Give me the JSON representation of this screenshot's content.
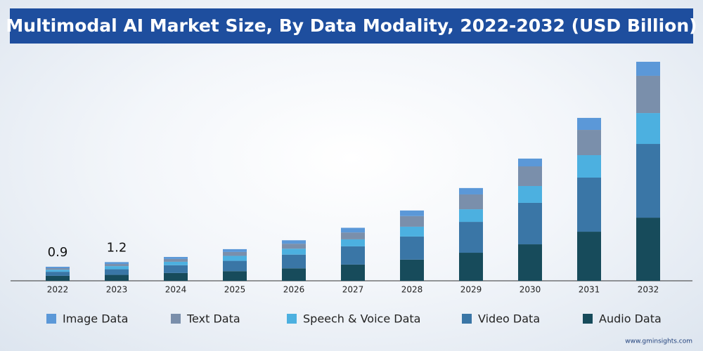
{
  "chart_data": {
    "type": "bar",
    "stacked": true,
    "title": "Multimodal AI Market Size, By Data Modality, 2022-2032 (USD Billion)",
    "source": "www.gminsights.com",
    "categories": [
      "2022",
      "2023",
      "2024",
      "2025",
      "2026",
      "2027",
      "2028",
      "2029",
      "2030",
      "2031",
      "2032"
    ],
    "series": [
      {
        "name": "Audio Data",
        "color": "#174b5b",
        "values": [
          0.32,
          0.38,
          0.5,
          0.62,
          0.8,
          1.04,
          1.36,
          1.8,
          2.34,
          3.15,
          4.05
        ]
      },
      {
        "name": "Video Data",
        "color": "#3a76a6",
        "values": [
          0.26,
          0.36,
          0.5,
          0.66,
          0.88,
          1.17,
          1.48,
          1.98,
          2.66,
          3.47,
          4.73
        ]
      },
      {
        "name": "Speech & Voice Data",
        "color": "#4cb0e0",
        "values": [
          0.13,
          0.2,
          0.22,
          0.32,
          0.38,
          0.45,
          0.63,
          0.81,
          1.08,
          1.44,
          1.98
        ]
      },
      {
        "name": "Text Data",
        "color": "#7a8fab",
        "values": [
          0.1,
          0.14,
          0.18,
          0.25,
          0.32,
          0.44,
          0.68,
          0.95,
          1.26,
          1.62,
          2.39
        ]
      },
      {
        "name": "Image Data",
        "color": "#5b98d8",
        "values": [
          0.09,
          0.12,
          0.13,
          0.18,
          0.22,
          0.3,
          0.36,
          0.41,
          0.5,
          0.77,
          0.9
        ]
      }
    ],
    "annotations": [
      {
        "category": "2022",
        "value": 0.9
      },
      {
        "category": "2023",
        "value": 1.2
      }
    ],
    "ylim": [
      0,
      14.5
    ]
  }
}
